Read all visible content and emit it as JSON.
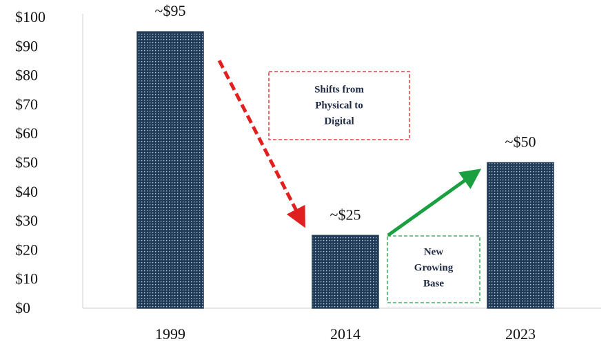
{
  "chart_data": {
    "type": "bar",
    "categories": [
      "1999",
      "2014",
      "2023"
    ],
    "values": [
      95,
      25,
      50
    ],
    "value_labels": [
      "~$95",
      "~$25",
      "~$50"
    ],
    "color": "#1f3b57",
    "ylim": [
      0,
      100
    ],
    "yticks": [
      {
        "value": 0,
        "label": "$0"
      },
      {
        "value": 10,
        "label": "$10"
      },
      {
        "value": 20,
        "label": "$20"
      },
      {
        "value": 30,
        "label": "$30"
      },
      {
        "value": 40,
        "label": "$40"
      },
      {
        "value": 50,
        "label": "$50"
      },
      {
        "value": 60,
        "label": "$60"
      },
      {
        "value": 70,
        "label": "$70"
      },
      {
        "value": 80,
        "label": "$80"
      },
      {
        "value": 90,
        "label": "$90"
      },
      {
        "value": 100,
        "label": "$100"
      }
    ],
    "grid": false,
    "annotations": [
      {
        "lines": [
          "Shifts from",
          "Physical to",
          "Digital"
        ],
        "color": "#e02020"
      },
      {
        "lines": [
          "New",
          "Growing",
          "Base"
        ],
        "color": "#1aa040"
      }
    ]
  }
}
